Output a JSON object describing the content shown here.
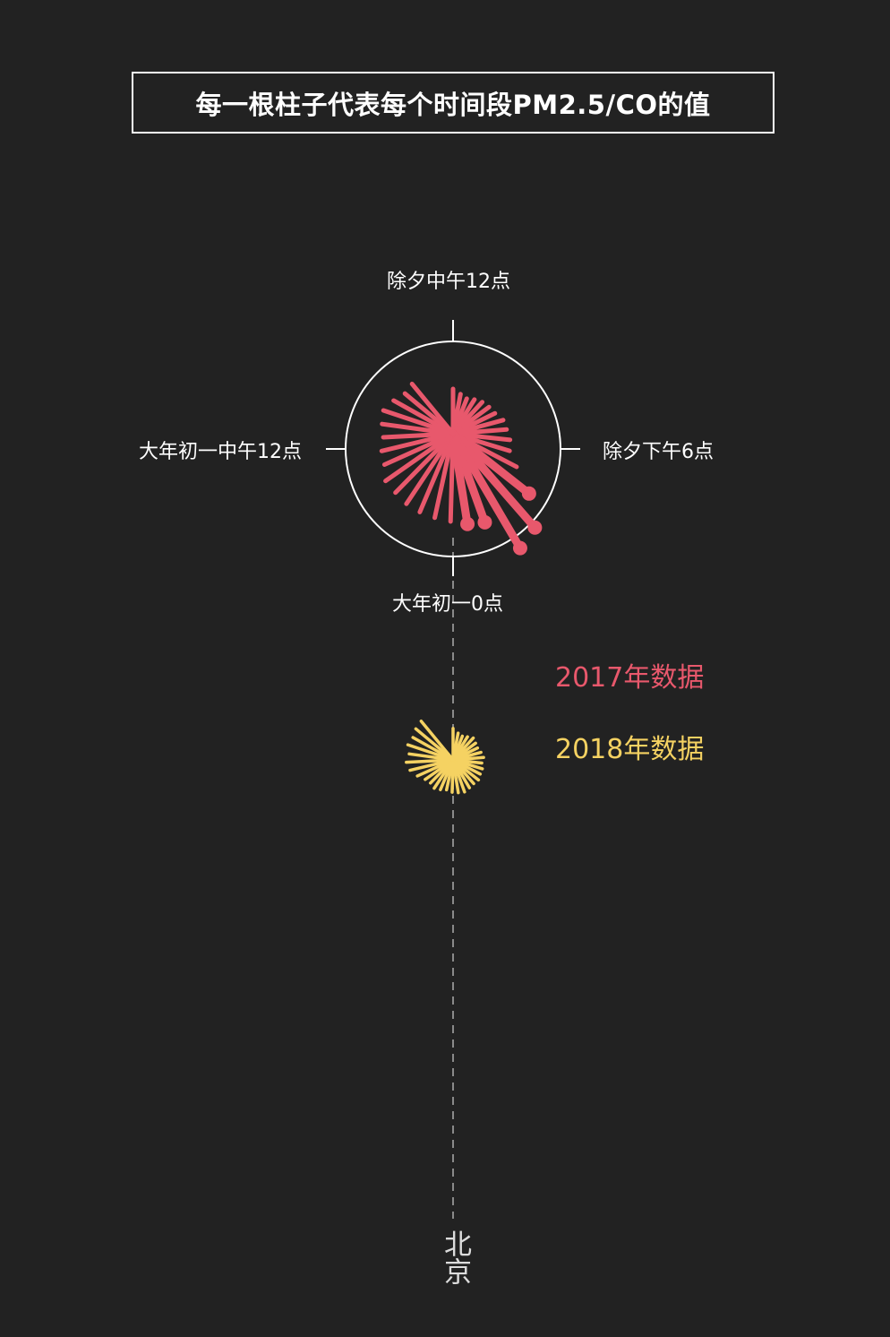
{
  "title": "每一根柱子代表每个时间段PM2.5/CO的值",
  "axis_labels": {
    "top": "除夕中午12点",
    "right": "除夕下午6点",
    "bottom": "大年初一0点",
    "left": "大年初一中午12点"
  },
  "legend": [
    {
      "label": "2017年数据",
      "color": "#e8586c"
    },
    {
      "label": "2018年数据",
      "color": "#f5d262"
    }
  ],
  "city": "北京",
  "chart_data": {
    "type": "radial-bar",
    "title": "每一根柱子代表每个时间段PM2.5/CO的值",
    "angular_axis": {
      "start": "除夕中午12点",
      "quarter": "除夕下午6点",
      "half": "大年初一0点",
      "three_quarter": "大年初一中午12点",
      "direction": "clockwise"
    },
    "series": [
      {
        "name": "2017年数据",
        "color": "#e8586c",
        "values": [
          50,
          45,
          42,
          45,
          48,
          50,
          52,
          58,
          60,
          64,
          66,
          80,
          108,
          139,
          148,
          105,
          102,
          98,
          96,
          95,
          94,
          92,
          92,
          84,
          82,
          78,
          80,
          82,
          76,
          70,
          72
        ]
      },
      {
        "name": "2018年数据",
        "color": "#f5d262",
        "values": [
          37,
          32,
          30,
          32,
          35,
          33,
          32,
          34,
          36,
          34,
          36,
          36,
          38,
          37,
          38,
          40,
          39,
          38,
          36,
          38,
          40,
          38,
          40,
          46,
          52,
          55,
          52,
          56,
          54,
          57,
          59
        ]
      }
    ]
  }
}
